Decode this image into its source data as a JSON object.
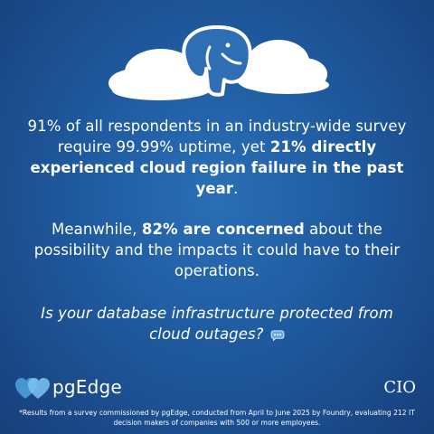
{
  "hero": {
    "icon": "postgres-elephant-icon"
  },
  "paragraph1": {
    "part1": "91% of all respondents in an industry-wide survey require 99.99% uptime, yet ",
    "bold": "21% directly experienced cloud region failure in the past year",
    "part2": "."
  },
  "paragraph2": {
    "part1": "Meanwhile, ",
    "bold": "82% are concerned",
    "part2": " about the possibility and the impacts it could have to their operations."
  },
  "question": {
    "text": "Is your database infrastructure protected from cloud outages?",
    "icon": "speech-bubble-icon"
  },
  "brand": {
    "logo_text": "pgEdge",
    "partner": "CIO"
  },
  "footnote": "*Results from a survey commissioned by pgEdge, conducted from April to June 2025 by Foundry, evaluating 212 IT decision makers of companies with 500 or more employees.",
  "colors": {
    "background": "#1f5a9f",
    "text": "#ffffff",
    "elephant": "#2f6db5"
  }
}
